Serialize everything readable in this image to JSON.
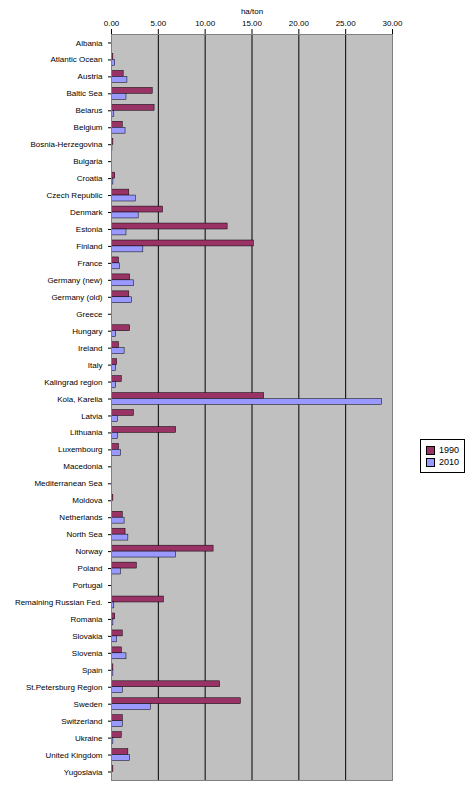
{
  "chart_data": {
    "type": "bar",
    "orientation": "horizontal",
    "grid": true,
    "legend": "right",
    "xlabel": "ha/ton",
    "xlim": [
      0,
      30
    ],
    "xticks": [
      {
        "value": 0,
        "label": "0.00"
      },
      {
        "value": 5,
        "label": "5.00"
      },
      {
        "value": 10,
        "label": "10.00"
      },
      {
        "value": 15,
        "label": "15.00"
      },
      {
        "value": 20,
        "label": "20.00"
      },
      {
        "value": 25,
        "label": "25.00"
      },
      {
        "value": 30,
        "label": "30.00"
      }
    ],
    "categories": [
      "Albania",
      "Atlantic Ocean",
      "Austria",
      "Baltic Sea",
      "Belarus",
      "Belgium",
      "Bosnia-Herzegovina",
      "Bulgaria",
      "Croatia",
      "Czech Republic",
      "Denmark",
      "Estonia",
      "Finland",
      "France",
      "Germany (new)",
      "Germany (old)",
      "Greece",
      "Hungary",
      "Ireland",
      "Italy",
      "Kalingrad region",
      "Kola, Karelia",
      "Latvia",
      "Lithuania",
      "Luxembourg",
      "Macedonia",
      "Mediterranean Sea",
      "Moldova",
      "Netherlands",
      "North Sea",
      "Norway",
      "Poland",
      "Portugal",
      "Remaining Russian Fed.",
      "Romania",
      "Slovakia",
      "Slovenia",
      "Spain",
      "St.Petersburg Region",
      "Sweden",
      "Switzerland",
      "Ukraine",
      "United Kingdom",
      "Yugoslavia"
    ],
    "series": [
      {
        "name": "1990",
        "color": "#993366",
        "values": [
          0,
          0.2,
          1.3,
          4.4,
          4.6,
          1.2,
          0.2,
          0.05,
          0.4,
          1.9,
          5.5,
          12.4,
          15.2,
          0.8,
          2.0,
          1.9,
          0,
          2.0,
          0.8,
          0.6,
          1.1,
          16.3,
          2.4,
          6.9,
          0.8,
          0,
          0.05,
          0.2,
          1.2,
          1.5,
          10.9,
          2.7,
          0.05,
          5.6,
          0.4,
          1.2,
          1.1,
          0.2,
          11.6,
          13.8,
          1.2,
          1.1,
          1.8,
          0.2
        ]
      },
      {
        "name": "2010",
        "color": "#9999FF",
        "values": [
          0,
          0.4,
          1.7,
          1.6,
          0.3,
          1.5,
          0.1,
          0.05,
          0.2,
          2.6,
          2.9,
          1.6,
          3.4,
          0.9,
          2.4,
          2.2,
          0,
          0.5,
          1.4,
          0.5,
          0.5,
          28.9,
          0.7,
          0.7,
          1.0,
          0,
          0.05,
          0.05,
          1.4,
          1.8,
          6.9,
          1.0,
          0,
          0.3,
          0.2,
          0.6,
          1.6,
          0.2,
          1.2,
          4.2,
          1.2,
          0.2,
          2.0,
          0.05
        ]
      }
    ]
  }
}
